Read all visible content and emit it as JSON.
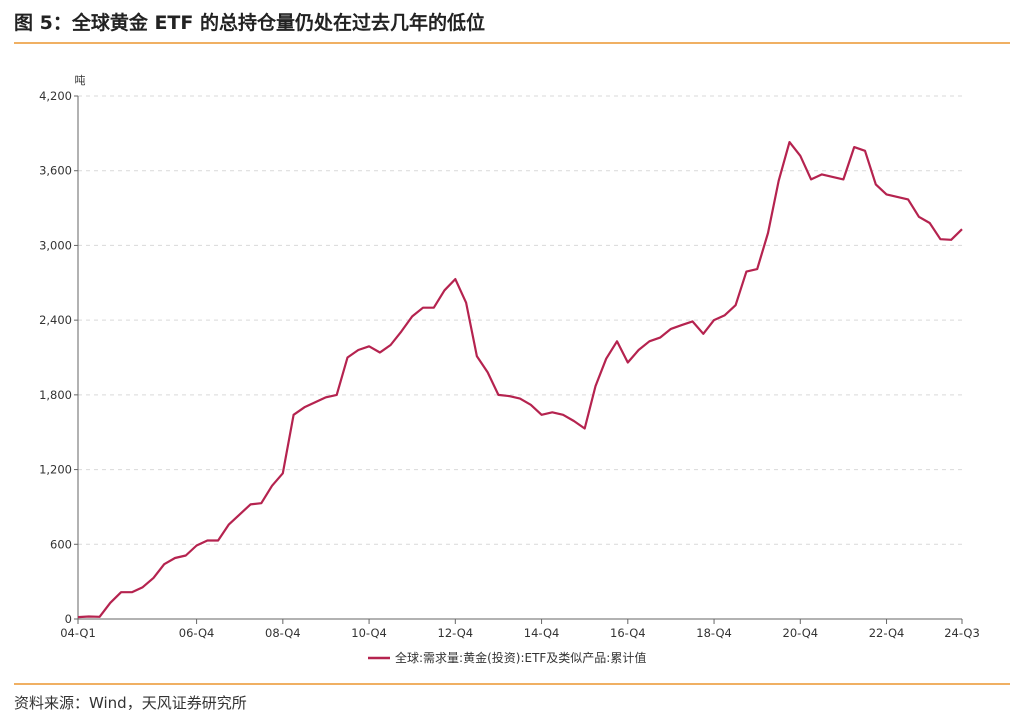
{
  "title": "图 5：全球黄金 ETF 的总持仓量仍处在过去几年的低位",
  "source": "资料来源：Wind，天风证券研究所",
  "colors": {
    "accent": "#f0b063",
    "series": "#b5234f"
  },
  "chart_data": {
    "type": "line",
    "title": "",
    "xlabel": "",
    "ylabel": "吨",
    "ylim": [
      0,
      4200
    ],
    "yticks": [
      0,
      600,
      1200,
      1800,
      2400,
      3000,
      3600,
      4200
    ],
    "ytick_labels": [
      "0",
      "600",
      "1,200",
      "1,800",
      "2,400",
      "3,000",
      "3,600",
      "4,200"
    ],
    "xticks": [
      "04-Q1",
      "06-Q4",
      "08-Q4",
      "10-Q4",
      "12-Q4",
      "14-Q4",
      "16-Q4",
      "18-Q4",
      "20-Q4",
      "22-Q4",
      "24-Q3"
    ],
    "grid": true,
    "legend": "bottom-center",
    "series": [
      {
        "name": "全球:需求量:黄金(投资):ETF及类似产品:累计值",
        "x": [
          "04-Q1",
          "04-Q2",
          "04-Q3",
          "04-Q4",
          "05-Q1",
          "05-Q2",
          "05-Q3",
          "05-Q4",
          "06-Q1",
          "06-Q2",
          "06-Q3",
          "06-Q4",
          "07-Q1",
          "07-Q2",
          "07-Q3",
          "07-Q4",
          "08-Q1",
          "08-Q2",
          "08-Q3",
          "08-Q4",
          "09-Q1",
          "09-Q2",
          "09-Q3",
          "09-Q4",
          "10-Q1",
          "10-Q2",
          "10-Q3",
          "10-Q4",
          "11-Q1",
          "11-Q2",
          "11-Q3",
          "11-Q4",
          "12-Q1",
          "12-Q2",
          "12-Q3",
          "12-Q4",
          "13-Q1",
          "13-Q2",
          "13-Q3",
          "13-Q4",
          "14-Q1",
          "14-Q2",
          "14-Q3",
          "14-Q4",
          "15-Q1",
          "15-Q2",
          "15-Q3",
          "15-Q4",
          "16-Q1",
          "16-Q2",
          "16-Q3",
          "16-Q4",
          "17-Q1",
          "17-Q2",
          "17-Q3",
          "17-Q4",
          "18-Q1",
          "18-Q2",
          "18-Q3",
          "18-Q4",
          "19-Q1",
          "19-Q2",
          "19-Q3",
          "19-Q4",
          "20-Q1",
          "20-Q2",
          "20-Q3",
          "20-Q4",
          "21-Q1",
          "21-Q2",
          "21-Q3",
          "21-Q4",
          "22-Q1",
          "22-Q2",
          "22-Q3",
          "22-Q4",
          "23-Q1",
          "23-Q2",
          "23-Q3",
          "23-Q4",
          "24-Q1",
          "24-Q2",
          "24-Q3"
        ],
        "values": [
          15,
          20,
          18,
          130,
          215,
          215,
          255,
          330,
          440,
          490,
          510,
          590,
          630,
          630,
          760,
          840,
          920,
          930,
          1070,
          1170,
          1640,
          1700,
          1740,
          1780,
          1800,
          2100,
          2160,
          2190,
          2140,
          2200,
          2310,
          2430,
          2500,
          2500,
          2640,
          2730,
          2540,
          2110,
          1980,
          1800,
          1790,
          1770,
          1720,
          1640,
          1660,
          1640,
          1590,
          1530,
          1870,
          2090,
          2230,
          2060,
          2160,
          2230,
          2260,
          2330,
          2360,
          2390,
          2290,
          2400,
          2440,
          2520,
          2790,
          2810,
          3100,
          3520,
          3830,
          3720,
          3530,
          3570,
          3550,
          3530,
          3790,
          3760,
          3490,
          3410,
          3390,
          3370,
          3230,
          3180,
          3050,
          3045,
          3130
        ]
      }
    ]
  }
}
